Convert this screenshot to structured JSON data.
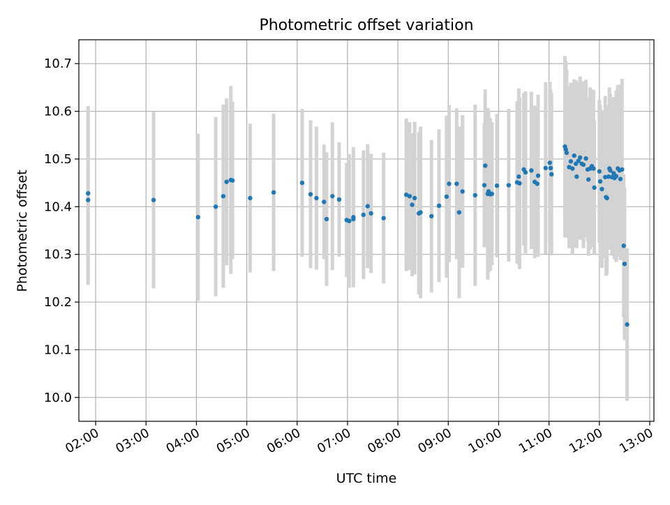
{
  "chart_data": {
    "type": "scatter",
    "title": "Photometric offset variation",
    "xlabel": "UTC time",
    "ylabel": "Photometric offset",
    "x_unit": "hours UTC",
    "xlim": [
      "01:40",
      "13:05"
    ],
    "ylim": [
      9.95,
      10.75
    ],
    "x_ticks": [
      "02:00",
      "03:00",
      "04:00",
      "05:00",
      "06:00",
      "07:00",
      "08:00",
      "09:00",
      "10:00",
      "11:00",
      "12:00",
      "13:00"
    ],
    "y_ticks": [
      "10.0",
      "10.1",
      "10.2",
      "10.3",
      "10.4",
      "10.5",
      "10.6",
      "10.7"
    ],
    "grid": true,
    "marker_color": "#1f77b4",
    "errorbar_color": "#d3d3d3",
    "series": [
      {
        "points": [
          {
            "x": "01:51",
            "y": 10.428,
            "err": 0.183
          },
          {
            "x": "01:51",
            "y": 10.414,
            "err": 0.178
          },
          {
            "x": "03:09",
            "y": 10.414,
            "err": 0.185
          },
          {
            "x": "04:02",
            "y": 10.378,
            "err": 0.175
          },
          {
            "x": "04:23",
            "y": 10.4,
            "err": 0.188
          },
          {
            "x": "04:32",
            "y": 10.422,
            "err": 0.192
          },
          {
            "x": "04:36",
            "y": 10.452,
            "err": 0.175
          },
          {
            "x": "04:41",
            "y": 10.456,
            "err": 0.197
          },
          {
            "x": "04:43",
            "y": 10.455,
            "err": 0.165
          },
          {
            "x": "05:04",
            "y": 10.418,
            "err": 0.156
          },
          {
            "x": "05:32",
            "y": 10.43,
            "err": 0.165
          },
          {
            "x": "06:06",
            "y": 10.45,
            "err": 0.155
          },
          {
            "x": "06:16",
            "y": 10.426,
            "err": 0.155
          },
          {
            "x": "06:23",
            "y": 10.418,
            "err": 0.15
          },
          {
            "x": "06:32",
            "y": 10.41,
            "err": 0.12
          },
          {
            "x": "06:35",
            "y": 10.374,
            "err": 0.14
          },
          {
            "x": "06:42",
            "y": 10.422,
            "err": 0.155
          },
          {
            "x": "06:50",
            "y": 10.415,
            "err": 0.12
          },
          {
            "x": "06:59",
            "y": 10.372,
            "err": 0.12
          },
          {
            "x": "07:02",
            "y": 10.37,
            "err": 0.14
          },
          {
            "x": "07:07",
            "y": 10.378,
            "err": 0.147
          },
          {
            "x": "07:07",
            "y": 10.374,
            "err": 0.13
          },
          {
            "x": "07:19",
            "y": 10.383,
            "err": 0.135
          },
          {
            "x": "07:24",
            "y": 10.401,
            "err": 0.13
          },
          {
            "x": "07:28",
            "y": 10.386,
            "err": 0.125
          },
          {
            "x": "07:43",
            "y": 10.376,
            "err": 0.137
          },
          {
            "x": "08:10",
            "y": 10.425,
            "err": 0.16
          },
          {
            "x": "08:14",
            "y": 10.422,
            "err": 0.155
          },
          {
            "x": "08:17",
            "y": 10.404,
            "err": 0.15
          },
          {
            "x": "08:20",
            "y": 10.418,
            "err": 0.16
          },
          {
            "x": "08:25",
            "y": 10.386,
            "err": 0.17
          },
          {
            "x": "08:27",
            "y": 10.388,
            "err": 0.18
          },
          {
            "x": "08:40",
            "y": 10.38,
            "err": 0.16
          },
          {
            "x": "08:49",
            "y": 10.402,
            "err": 0.16
          },
          {
            "x": "08:58",
            "y": 10.421,
            "err": 0.17
          },
          {
            "x": "09:01",
            "y": 10.448,
            "err": 0.165
          },
          {
            "x": "09:10",
            "y": 10.448,
            "err": 0.158
          },
          {
            "x": "09:13",
            "y": 10.388,
            "err": 0.18
          },
          {
            "x": "09:17",
            "y": 10.432,
            "err": 0.16
          },
          {
            "x": "09:32",
            "y": 10.424,
            "err": 0.19
          },
          {
            "x": "09:43",
            "y": 10.445,
            "err": 0.13
          },
          {
            "x": "09:44",
            "y": 10.486,
            "err": 0.16
          },
          {
            "x": "09:47",
            "y": 10.427,
            "err": 0.18
          },
          {
            "x": "09:48",
            "y": 10.432,
            "err": 0.17
          },
          {
            "x": "09:50",
            "y": 10.426,
            "err": 0.16
          },
          {
            "x": "09:52",
            "y": 10.427,
            "err": 0.15
          },
          {
            "x": "09:58",
            "y": 10.444,
            "err": 0.15
          },
          {
            "x": "10:12",
            "y": 10.445,
            "err": 0.16
          },
          {
            "x": "10:22",
            "y": 10.451,
            "err": 0.17
          },
          {
            "x": "10:24",
            "y": 10.463,
            "err": 0.185
          },
          {
            "x": "10:25",
            "y": 10.449,
            "err": 0.18
          },
          {
            "x": "10:30",
            "y": 10.478,
            "err": 0.16
          },
          {
            "x": "10:32",
            "y": 10.472,
            "err": 0.17
          },
          {
            "x": "10:39",
            "y": 10.476,
            "err": 0.165
          },
          {
            "x": "10:43",
            "y": 10.452,
            "err": 0.16
          },
          {
            "x": "10:46",
            "y": 10.448,
            "err": 0.15
          },
          {
            "x": "10:47",
            "y": 10.465,
            "err": 0.17
          },
          {
            "x": "10:56",
            "y": 10.481,
            "err": 0.18
          },
          {
            "x": "11:01",
            "y": 10.492,
            "err": 0.17
          },
          {
            "x": "11:02",
            "y": 10.481,
            "err": 0.165
          },
          {
            "x": "11:03",
            "y": 10.468,
            "err": 0.17
          },
          {
            "x": "11:19",
            "y": 10.526,
            "err": 0.19
          },
          {
            "x": "11:20",
            "y": 10.52,
            "err": 0.185
          },
          {
            "x": "11:21",
            "y": 10.513,
            "err": 0.175
          },
          {
            "x": "11:24",
            "y": 10.483,
            "err": 0.17
          },
          {
            "x": "11:26",
            "y": 10.495,
            "err": 0.165
          },
          {
            "x": "11:28",
            "y": 10.48,
            "err": 0.18
          },
          {
            "x": "11:30",
            "y": 10.507,
            "err": 0.16
          },
          {
            "x": "11:32",
            "y": 10.49,
            "err": 0.175
          },
          {
            "x": "11:33",
            "y": 10.463,
            "err": 0.15
          },
          {
            "x": "11:35",
            "y": 10.496,
            "err": 0.165
          },
          {
            "x": "11:37",
            "y": 10.503,
            "err": 0.17
          },
          {
            "x": "11:39",
            "y": 10.49,
            "err": 0.16
          },
          {
            "x": "11:41",
            "y": 10.488,
            "err": 0.175
          },
          {
            "x": "11:44",
            "y": 10.501,
            "err": 0.165
          },
          {
            "x": "11:46",
            "y": 10.478,
            "err": 0.15
          },
          {
            "x": "11:47",
            "y": 10.457,
            "err": 0.16
          },
          {
            "x": "11:49",
            "y": 10.48,
            "err": 0.17
          },
          {
            "x": "11:51",
            "y": 10.485,
            "err": 0.16
          },
          {
            "x": "11:53",
            "y": 10.48,
            "err": 0.165
          },
          {
            "x": "11:54",
            "y": 10.44,
            "err": 0.14
          },
          {
            "x": "12:00",
            "y": 10.474,
            "err": 0.15
          },
          {
            "x": "12:01",
            "y": 10.453,
            "err": 0.16
          },
          {
            "x": "12:03",
            "y": 10.437,
            "err": 0.165
          },
          {
            "x": "12:07",
            "y": 10.462,
            "err": 0.17
          },
          {
            "x": "12:08",
            "y": 10.42,
            "err": 0.165
          },
          {
            "x": "12:09",
            "y": 10.418,
            "err": 0.16
          },
          {
            "x": "12:11",
            "y": 10.463,
            "err": 0.15
          },
          {
            "x": "12:12",
            "y": 10.48,
            "err": 0.17
          },
          {
            "x": "12:13",
            "y": 10.476,
            "err": 0.16
          },
          {
            "x": "12:15",
            "y": 10.462,
            "err": 0.165
          },
          {
            "x": "12:17",
            "y": 10.47,
            "err": 0.16
          },
          {
            "x": "12:18",
            "y": 10.46,
            "err": 0.17
          },
          {
            "x": "12:20",
            "y": 10.464,
            "err": 0.18
          },
          {
            "x": "12:22",
            "y": 10.48,
            "err": 0.175
          },
          {
            "x": "12:24",
            "y": 10.476,
            "err": 0.18
          },
          {
            "x": "12:25",
            "y": 10.458,
            "err": 0.17
          },
          {
            "x": "12:27",
            "y": 10.478,
            "err": 0.19
          },
          {
            "x": "12:29",
            "y": 10.318,
            "err": 0.15
          },
          {
            "x": "12:30",
            "y": 10.28,
            "err": 0.16
          },
          {
            "x": "12:33",
            "y": 10.153,
            "err": 0.16
          }
        ]
      }
    ]
  }
}
